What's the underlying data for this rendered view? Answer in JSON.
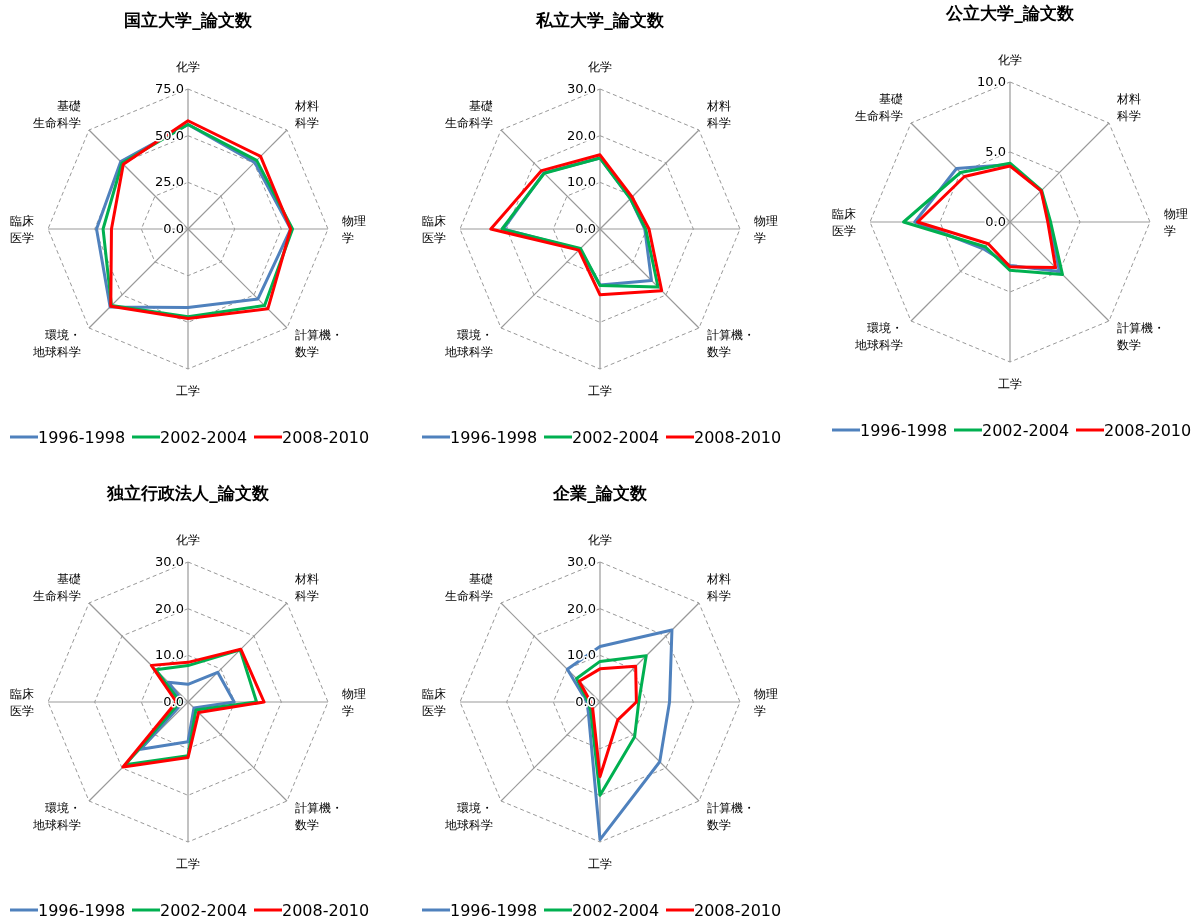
{
  "chart_data": [
    {
      "type": "radar",
      "title": "国立大学_論文数",
      "categories": [
        "化学",
        "材料科学",
        "物理学",
        "計算機・数学",
        "工学",
        "環境・地球科学",
        "臨床医学",
        "基礎生命科学"
      ],
      "ylim": [
        0,
        75
      ],
      "yticks": [
        {
          "value": 0,
          "label": "0.0"
        },
        {
          "value": 25,
          "label": "25.0"
        },
        {
          "value": 50,
          "label": "50.0"
        },
        {
          "value": 75,
          "label": "75.0"
        }
      ],
      "grid": true,
      "legend": "bottom",
      "series": [
        {
          "name": "1996-1998",
          "color": "#4f81bd",
          "values": [
            56,
            50.5,
            55,
            53,
            42,
            59,
            49,
            51
          ]
        },
        {
          "name": "2002-2004",
          "color": "#00b050",
          "values": [
            56,
            52,
            56,
            58,
            47,
            58,
            45.5,
            50
          ]
        },
        {
          "name": "2008-2010",
          "color": "#ff0000",
          "values": [
            58,
            55,
            55,
            60.5,
            48,
            58.5,
            41,
            49
          ]
        }
      ]
    },
    {
      "type": "radar",
      "title": "私立大学_論文数",
      "categories": [
        "化学",
        "材料科学",
        "物理学",
        "計算機・数学",
        "工学",
        "環境・地球科学",
        "臨床医学",
        "基礎生命科学"
      ],
      "ylim": [
        0,
        30
      ],
      "yticks": [
        {
          "value": 0,
          "label": "0.0"
        },
        {
          "value": 10,
          "label": "10.0"
        },
        {
          "value": 20,
          "label": "20.0"
        },
        {
          "value": 30,
          "label": "30.0"
        }
      ],
      "grid": true,
      "legend": "bottom",
      "series": [
        {
          "name": "1996-1998",
          "color": "#4f81bd",
          "values": [
            15.2,
            9.2,
            9.6,
            15.6,
            12,
            6.1,
            20.7,
            17
          ]
        },
        {
          "name": "2002-2004",
          "color": "#00b050",
          "values": [
            15.2,
            9.2,
            9.8,
            17.6,
            12.1,
            5.9,
            21,
            16.9
          ]
        },
        {
          "name": "2008-2010",
          "color": "#ff0000",
          "values": [
            15.9,
            9.7,
            10.5,
            18.7,
            14.1,
            6.4,
            23.4,
            17.7
          ]
        }
      ]
    },
    {
      "type": "radar",
      "title": "公立大学_論文数",
      "categories": [
        "化学",
        "材料科学",
        "物理学",
        "計算機・数学",
        "工学",
        "環境・地球科学",
        "臨床医学",
        "基礎生命科学"
      ],
      "ylim": [
        0,
        10
      ],
      "yticks": [
        {
          "value": 0,
          "label": "0.0"
        },
        {
          "value": 5,
          "label": "5.0"
        },
        {
          "value": 10,
          "label": "10.0"
        }
      ],
      "grid": true,
      "legend": "bottom",
      "series": [
        {
          "name": "1996-1998",
          "color": "#4f81bd",
          "values": [
            4.1,
            3.15,
            2.8,
            5,
            3.1,
            2.7,
            6.8,
            5.4
          ]
        },
        {
          "name": "2002-2004",
          "color": "#00b050",
          "values": [
            4.2,
            3.2,
            2.9,
            5.3,
            3.45,
            2.5,
            7.6,
            5
          ]
        },
        {
          "name": "2008-2010",
          "color": "#ff0000",
          "values": [
            4,
            3.15,
            2.7,
            4.6,
            3.2,
            2.2,
            6.6,
            4.6
          ]
        }
      ]
    },
    {
      "type": "radar",
      "title": "独立行政法人_論文数",
      "categories": [
        "化学",
        "材料科学",
        "物理学",
        "計算機・数学",
        "工学",
        "環境・地球科学",
        "臨床医学",
        "基礎生命科学"
      ],
      "ylim": [
        0,
        30
      ],
      "yticks": [
        {
          "value": 0,
          "label": "0.0"
        },
        {
          "value": 10,
          "label": "10.0"
        },
        {
          "value": 20,
          "label": "20.0"
        },
        {
          "value": 30,
          "label": "30.0"
        }
      ],
      "grid": true,
      "legend": "bottom",
      "series": [
        {
          "name": "1996-1998",
          "color": "#4f81bd",
          "values": [
            3.8,
            9,
            9.9,
            1.8,
            8.5,
            14.3,
            1,
            6
          ]
        },
        {
          "name": "2002-2004",
          "color": "#00b050",
          "values": [
            7.8,
            15.8,
            14.7,
            2.4,
            11.5,
            19,
            1.7,
            9.8
          ]
        },
        {
          "name": "2008-2010",
          "color": "#ff0000",
          "values": [
            8.5,
            16,
            16.3,
            3.2,
            11.9,
            19.7,
            2.5,
            11.1
          ]
        }
      ]
    },
    {
      "type": "radar",
      "title": "企業_論文数",
      "categories": [
        "化学",
        "材料科学",
        "物理学",
        "計算機・数学",
        "工学",
        "環境・地球科学",
        "臨床医学",
        "基礎生命科学"
      ],
      "ylim": [
        0,
        30
      ],
      "yticks": [
        {
          "value": 0,
          "label": "0.0"
        },
        {
          "value": 10,
          "label": "10.0"
        },
        {
          "value": 20,
          "label": "20.0"
        },
        {
          "value": 30,
          "label": "30.0"
        }
      ],
      "grid": true,
      "legend": "bottom",
      "series": [
        {
          "name": "1996-1998",
          "color": "#4f81bd",
          "values": [
            11.9,
            21.8,
            14.9,
            18.1,
            29.5,
            3.5,
            2.8,
            9.9
          ]
        },
        {
          "name": "2002-2004",
          "color": "#00b050",
          "values": [
            8.7,
            14,
            8.3,
            10.5,
            20,
            2.8,
            2.5,
            7.1
          ]
        },
        {
          "name": "2008-2010",
          "color": "#ff0000",
          "values": [
            7.1,
            10.8,
            7.8,
            5.4,
            16,
            2.2,
            2,
            6.3
          ]
        }
      ]
    }
  ]
}
